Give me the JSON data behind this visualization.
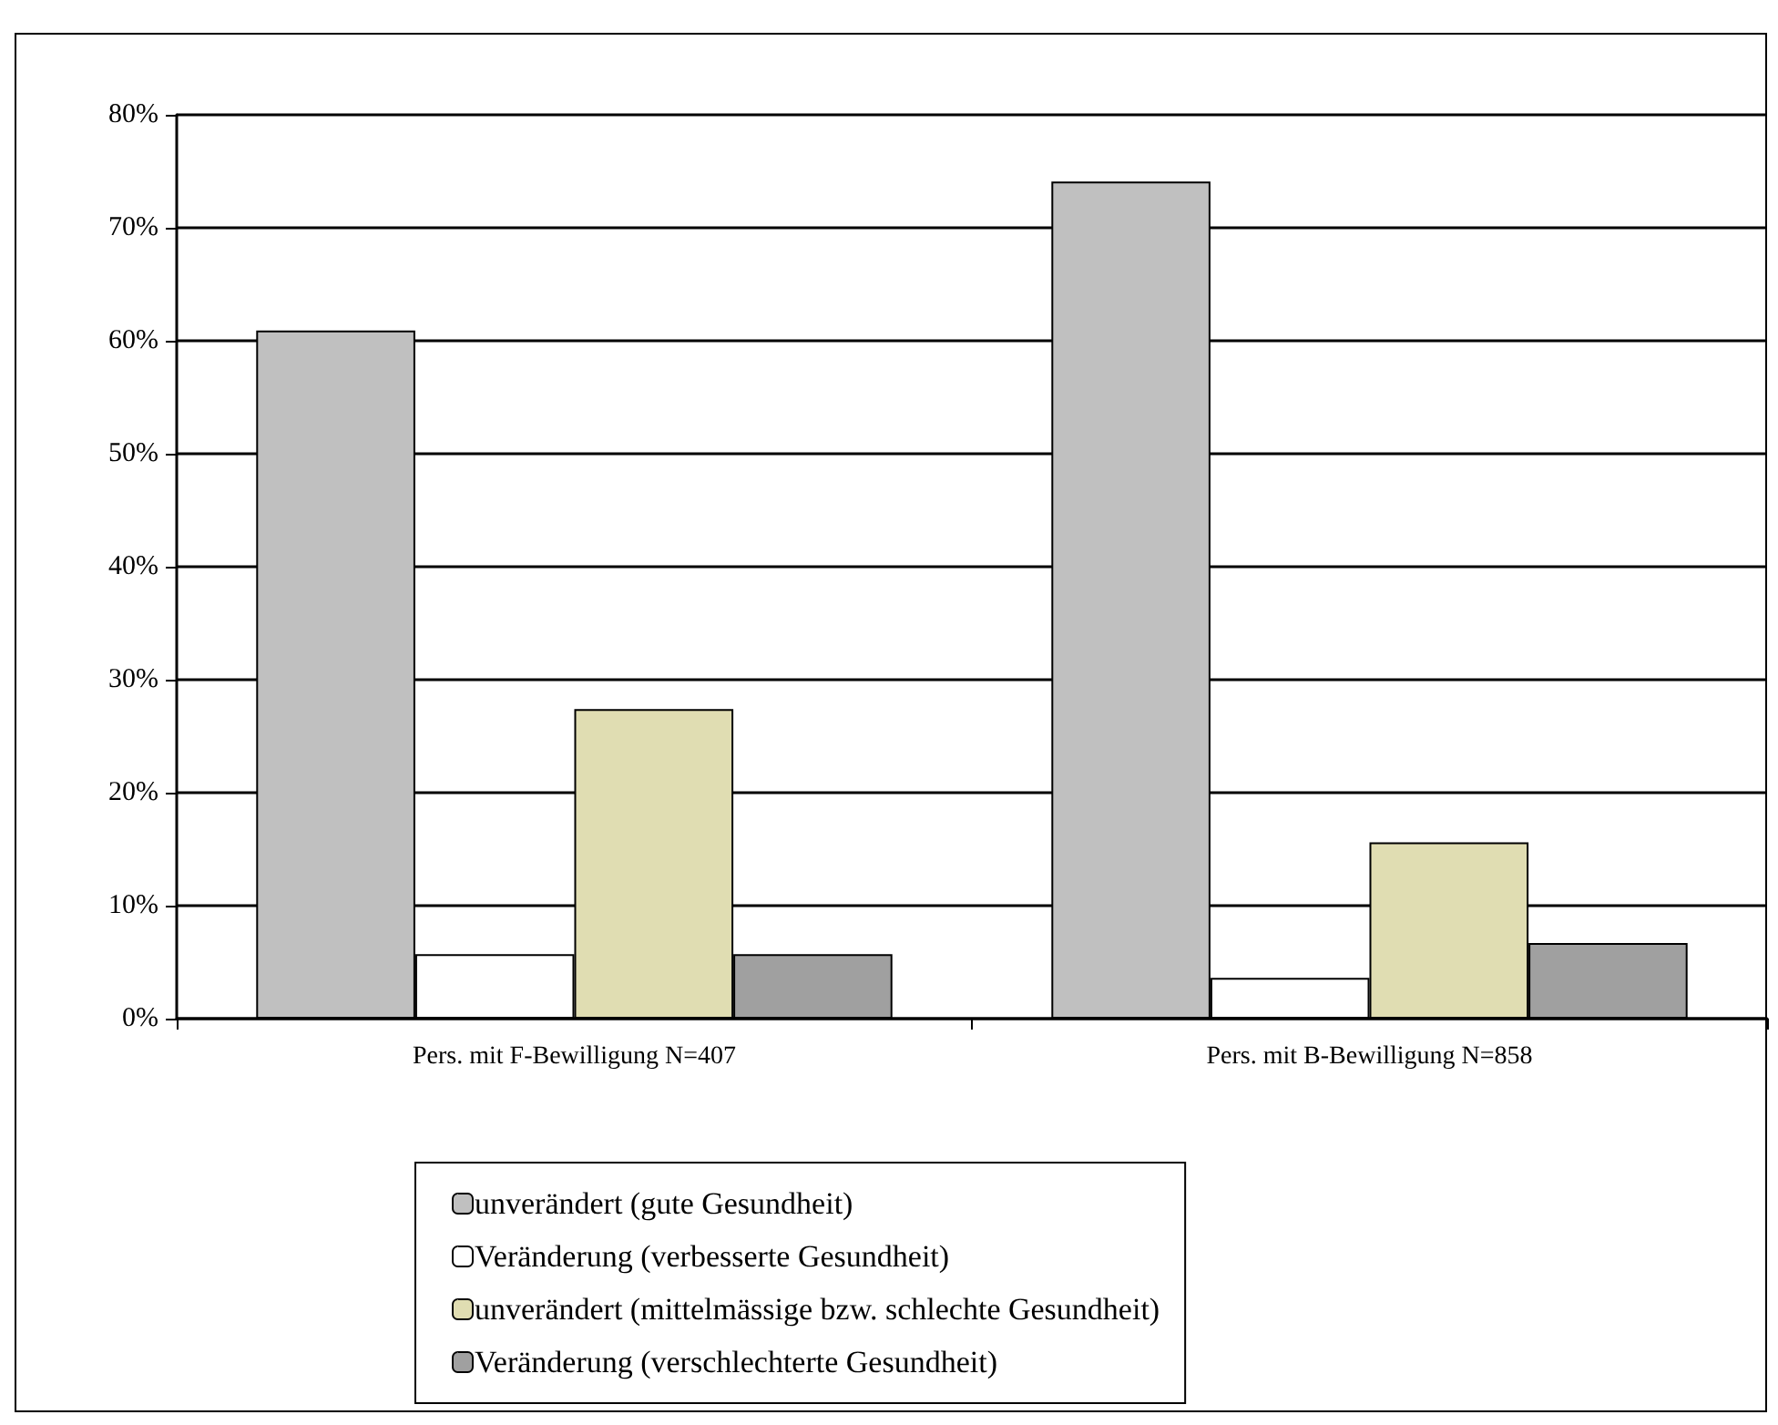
{
  "chart_data": {
    "type": "bar",
    "categories": [
      "Pers. mit F-Bewilligung N=407",
      "Pers. mit B-Bewilligung N=858"
    ],
    "series": [
      {
        "name": "unverändert (gute Gesundheit)",
        "color": "#c0c0c0",
        "values": [
          60.9,
          74.1
        ]
      },
      {
        "name": "Veränderung (verbesserte Gesundheit)",
        "color": "#ffffff",
        "values": [
          5.7,
          3.6
        ]
      },
      {
        "name": "unverändert (mittelmässige bzw. schlechte Gesundheit)",
        "color": "#e0ddb2",
        "values": [
          27.4,
          15.6
        ]
      },
      {
        "name": "Veränderung (verschlechterte Gesundheit)",
        "color": "#a0a0a0",
        "values": [
          5.7,
          6.7
        ]
      }
    ],
    "ylim": [
      0,
      80
    ],
    "yticks": [
      {
        "value": 0,
        "label": "0%"
      },
      {
        "value": 10,
        "label": "10%"
      },
      {
        "value": 20,
        "label": "20%"
      },
      {
        "value": 30,
        "label": "30%"
      },
      {
        "value": 40,
        "label": "40%"
      },
      {
        "value": 50,
        "label": "50%"
      },
      {
        "value": 60,
        "label": "60%"
      },
      {
        "value": 70,
        "label": "70%"
      },
      {
        "value": 80,
        "label": "80%"
      }
    ],
    "grid": "y",
    "legend": "bottom"
  }
}
